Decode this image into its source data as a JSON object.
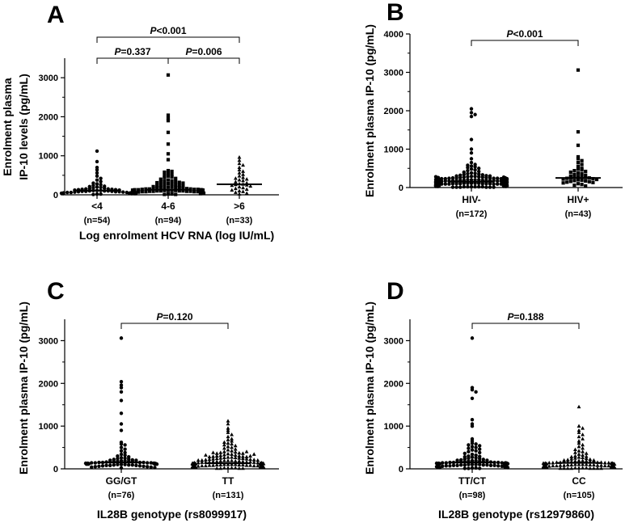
{
  "chart_data": [
    {
      "type": "scatter",
      "panel": "A",
      "ylabel_lines": [
        "Enrolment plasma",
        "IP-10 levels (pg/mL)"
      ],
      "xlabel": "Log enrolment HCV RNA (log IU/mL)",
      "ylim": [
        0,
        3500
      ],
      "yticks": [
        "0",
        "1000",
        "2000",
        "3000"
      ],
      "categories": [
        "<4",
        "4-6",
        ">6"
      ],
      "n_labels": [
        "(n=54)",
        "(n=94)",
        "(n=33)"
      ],
      "markers": [
        "circle",
        "square",
        "triangle"
      ],
      "medians": [
        110,
        130,
        270
      ],
      "series": [
        {
          "values": [
            1120,
            850,
            700,
            640,
            560,
            480,
            420,
            380,
            340,
            300,
            280,
            260,
            240,
            220,
            210,
            200,
            190,
            180,
            170,
            160,
            150,
            150,
            140,
            140,
            130,
            130,
            120,
            120,
            110,
            110,
            110,
            100,
            100,
            100,
            90,
            90,
            90,
            80,
            80,
            80,
            70,
            70,
            60,
            60,
            60,
            50,
            50,
            40,
            40,
            30,
            30,
            20,
            20,
            10
          ]
        },
        {
          "values": [
            3070,
            2040,
            1960,
            1900,
            1600,
            1300,
            1050,
            900,
            620,
            600,
            580,
            550,
            520,
            500,
            480,
            460,
            440,
            420,
            400,
            380,
            360,
            350,
            340,
            330,
            320,
            310,
            300,
            290,
            280,
            270,
            260,
            250,
            240,
            230,
            220,
            210,
            200,
            200,
            190,
            190,
            180,
            180,
            170,
            170,
            160,
            160,
            150,
            150,
            150,
            140,
            140,
            140,
            130,
            130,
            130,
            130,
            120,
            120,
            120,
            120,
            110,
            110,
            110,
            110,
            100,
            100,
            100,
            100,
            90,
            90,
            90,
            90,
            80,
            80,
            80,
            80,
            70,
            70,
            70,
            60,
            60,
            60,
            50,
            50,
            50,
            40,
            40,
            40,
            30,
            30,
            20,
            20,
            10,
            10
          ]
        },
        {
          "values": [
            960,
            880,
            800,
            760,
            700,
            640,
            600,
            560,
            520,
            480,
            440,
            420,
            400,
            380,
            360,
            330,
            300,
            280,
            270,
            260,
            250,
            240,
            220,
            200,
            180,
            160,
            140,
            120,
            100,
            80,
            60,
            40,
            20
          ]
        }
      ],
      "comparisons": [
        {
          "from": 0,
          "to": 1,
          "level": 1,
          "label": "P=0.337"
        },
        {
          "from": 1,
          "to": 2,
          "level": 1,
          "label": "P=0.006"
        },
        {
          "from": 0,
          "to": 2,
          "level": 2,
          "label": "P<0.001"
        }
      ]
    },
    {
      "type": "scatter",
      "panel": "B",
      "ylabel_lines": [
        "Enrolment plasma IP-10 (pg/mL)"
      ],
      "xlabel": "",
      "ylim": [
        0,
        4000
      ],
      "yticks": [
        "0",
        "1000",
        "2000",
        "3000",
        "4000"
      ],
      "categories": [
        "HIV-",
        "HIV+"
      ],
      "n_labels": [
        "(n=172)",
        "(n=43)"
      ],
      "markers": [
        "circle",
        "square"
      ],
      "medians": [
        150,
        250
      ],
      "series": [
        {
          "values": [
            2050,
            1950,
            1900,
            1850,
            1250,
            1000,
            900,
            750,
            650,
            600,
            580,
            560,
            540,
            520,
            500,
            480,
            460,
            440,
            420,
            400,
            380,
            370,
            360,
            350,
            340,
            330,
            320,
            310,
            300,
            300,
            290,
            290,
            280,
            280,
            270,
            270,
            260,
            260,
            250,
            250,
            250,
            240,
            240,
            240,
            230,
            230,
            230,
            220,
            220,
            220,
            210,
            210,
            210,
            200,
            200,
            200,
            200,
            190,
            190,
            190,
            190,
            180,
            180,
            180,
            180,
            170,
            170,
            170,
            170,
            160,
            160,
            160,
            160,
            160,
            150,
            150,
            150,
            150,
            150,
            140,
            140,
            140,
            140,
            140,
            130,
            130,
            130,
            130,
            130,
            120,
            120,
            120,
            120,
            120,
            110,
            110,
            110,
            110,
            110,
            100,
            100,
            100,
            100,
            100,
            100,
            90,
            90,
            90,
            90,
            90,
            90,
            80,
            80,
            80,
            80,
            80,
            80,
            70,
            70,
            70,
            70,
            70,
            70,
            60,
            60,
            60,
            60,
            60,
            60,
            50,
            50,
            50,
            50,
            50,
            50,
            40,
            40,
            40,
            40,
            40,
            40,
            30,
            30,
            30,
            30,
            30,
            30,
            20,
            20,
            20,
            20,
            20,
            20,
            10,
            10,
            10,
            10,
            10,
            10,
            160,
            170,
            180,
            190,
            200,
            210,
            220,
            230,
            240,
            250,
            260,
            270,
            280
          ]
        },
        {
          "values": [
            3060,
            1450,
            1100,
            800,
            750,
            700,
            650,
            600,
            550,
            500,
            480,
            460,
            440,
            420,
            400,
            380,
            360,
            340,
            320,
            300,
            290,
            280,
            270,
            260,
            250,
            250,
            240,
            230,
            220,
            210,
            200,
            190,
            180,
            170,
            160,
            150,
            140,
            130,
            120,
            100,
            80,
            60,
            40
          ]
        }
      ],
      "comparisons": [
        {
          "from": 0,
          "to": 1,
          "level": 1,
          "label": "P<0.001"
        }
      ]
    },
    {
      "type": "scatter",
      "panel": "C",
      "ylabel_lines": [
        "Enrolment plasma IP-10 (pg/mL)"
      ],
      "xlabel": "IL28B genotype (rs8099917)",
      "ylim": [
        0,
        3500
      ],
      "yticks": [
        "0",
        "1000",
        "2000",
        "3000"
      ],
      "categories": [
        "GG/GT",
        "TT"
      ],
      "n_labels": [
        "(n=76)",
        "(n=131)"
      ],
      "markers": [
        "circle",
        "triangle"
      ],
      "medians": [
        150,
        130
      ],
      "series": [
        {
          "values": [
            3060,
            2040,
            1960,
            1900,
            1800,
            1600,
            1300,
            1050,
            900,
            620,
            580,
            560,
            500,
            460,
            420,
            380,
            340,
            320,
            300,
            280,
            260,
            250,
            240,
            230,
            220,
            210,
            200,
            200,
            190,
            190,
            180,
            180,
            170,
            170,
            160,
            160,
            160,
            150,
            150,
            150,
            150,
            140,
            140,
            140,
            140,
            130,
            130,
            130,
            130,
            120,
            120,
            120,
            120,
            110,
            110,
            110,
            110,
            100,
            100,
            100,
            90,
            90,
            90,
            80,
            80,
            80,
            70,
            70,
            60,
            60,
            50,
            50,
            40,
            40,
            30,
            20
          ]
        },
        {
          "values": [
            1120,
            1050,
            950,
            900,
            850,
            800,
            750,
            700,
            680,
            650,
            620,
            600,
            580,
            560,
            540,
            520,
            500,
            480,
            460,
            440,
            420,
            400,
            390,
            380,
            370,
            360,
            350,
            340,
            330,
            320,
            310,
            300,
            300,
            290,
            290,
            280,
            280,
            270,
            270,
            260,
            260,
            250,
            250,
            240,
            240,
            230,
            230,
            220,
            220,
            210,
            210,
            200,
            200,
            200,
            190,
            190,
            190,
            180,
            180,
            180,
            170,
            170,
            170,
            160,
            160,
            160,
            150,
            150,
            150,
            140,
            140,
            140,
            140,
            130,
            130,
            130,
            130,
            120,
            120,
            120,
            120,
            110,
            110,
            110,
            110,
            100,
            100,
            100,
            100,
            90,
            90,
            90,
            90,
            80,
            80,
            80,
            80,
            70,
            70,
            70,
            70,
            60,
            60,
            60,
            60,
            50,
            50,
            50,
            50,
            40,
            40,
            40,
            40,
            30,
            30,
            30,
            30,
            20,
            20,
            20,
            20,
            10,
            10,
            10,
            10,
            300,
            320,
            340,
            360,
            380,
            400
          ]
        }
      ],
      "comparisons": [
        {
          "from": 0,
          "to": 1,
          "level": 1,
          "label": "P=0.120"
        }
      ]
    },
    {
      "type": "scatter",
      "panel": "D",
      "ylabel_lines": [
        "Enrolment plasma IP-10 (pg/mL)"
      ],
      "xlabel": "IL28B genotype (rs12979860)",
      "ylim": [
        0,
        3500
      ],
      "yticks": [
        "0",
        "1000",
        "2000",
        "3000"
      ],
      "categories": [
        "TT/CT",
        "CC"
      ],
      "n_labels": [
        "(n=98)",
        "(n=105)"
      ],
      "markers": [
        "circle",
        "triangle"
      ],
      "medians": [
        150,
        140
      ],
      "series": [
        {
          "values": [
            3060,
            1900,
            1850,
            1800,
            1650,
            1150,
            1050,
            1000,
            700,
            650,
            600,
            580,
            560,
            540,
            520,
            500,
            480,
            460,
            440,
            420,
            400,
            380,
            360,
            340,
            320,
            300,
            290,
            280,
            270,
            260,
            250,
            240,
            230,
            220,
            210,
            200,
            200,
            190,
            190,
            180,
            180,
            170,
            170,
            170,
            160,
            160,
            160,
            150,
            150,
            150,
            150,
            140,
            140,
            140,
            140,
            130,
            130,
            130,
            130,
            120,
            120,
            120,
            120,
            110,
            110,
            110,
            110,
            100,
            100,
            100,
            100,
            90,
            90,
            90,
            90,
            80,
            80,
            80,
            80,
            70,
            70,
            70,
            60,
            60,
            60,
            50,
            50,
            50,
            40,
            40,
            40,
            30,
            30,
            20,
            20,
            10,
            10,
            10
          ]
        },
        {
          "values": [
            1450,
            1000,
            950,
            900,
            850,
            800,
            750,
            700,
            650,
            600,
            560,
            520,
            480,
            450,
            420,
            400,
            380,
            360,
            340,
            320,
            300,
            290,
            280,
            270,
            260,
            250,
            240,
            230,
            220,
            210,
            200,
            200,
            190,
            190,
            180,
            180,
            170,
            170,
            160,
            160,
            160,
            150,
            150,
            150,
            150,
            140,
            140,
            140,
            140,
            130,
            130,
            130,
            130,
            120,
            120,
            120,
            120,
            110,
            110,
            110,
            110,
            100,
            100,
            100,
            100,
            90,
            90,
            90,
            90,
            80,
            80,
            80,
            80,
            70,
            70,
            70,
            70,
            60,
            60,
            60,
            60,
            50,
            50,
            50,
            50,
            40,
            40,
            40,
            40,
            30,
            30,
            30,
            30,
            20,
            20,
            20,
            20,
            10,
            10,
            10,
            10,
            10,
            10,
            10,
            10
          ]
        }
      ],
      "comparisons": [
        {
          "from": 0,
          "to": 1,
          "level": 1,
          "label": "P=0.188"
        }
      ]
    }
  ]
}
